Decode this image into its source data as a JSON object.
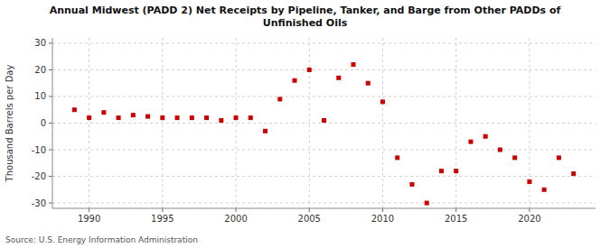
{
  "chart_data": {
    "type": "scatter",
    "title": "Annual Midwest (PADD 2) Net Receipts by Pipeline, Tanker, and Barge from Other PADDs of\nUnfinished Oils",
    "ylabel": "Thousand Barrels per Day",
    "source": "Source: U.S. Energy Information Administration",
    "color": "#cc0000",
    "marker": "square",
    "grid": true,
    "x": [
      1989,
      1990,
      1991,
      1992,
      1993,
      1994,
      1995,
      1996,
      1997,
      1998,
      1999,
      2000,
      2001,
      2002,
      2003,
      2004,
      2005,
      2006,
      2007,
      2008,
      2009,
      2010,
      2011,
      2012,
      2013,
      2014,
      2015,
      2016,
      2017,
      2018,
      2019,
      2020,
      2021,
      2022,
      2023
    ],
    "values": [
      5.0,
      2.0,
      4.0,
      2.0,
      3.0,
      2.5,
      2.0,
      2.0,
      2.0,
      2.0,
      1.0,
      2.0,
      2.0,
      -3.0,
      9.0,
      16.0,
      20.0,
      1.0,
      17.0,
      22.0,
      15.0,
      8.0,
      -13.0,
      -23.0,
      -30.0,
      -18.0,
      -18.0,
      -7.0,
      -5.0,
      -10.0,
      -13.0,
      -22.0,
      -25.0,
      -13.0,
      -19.0
    ],
    "xlim": [
      1987.5,
      2024.5
    ],
    "ylim": [
      -32,
      32
    ],
    "xticks": [
      1990,
      1995,
      2000,
      2005,
      2010,
      2015,
      2020
    ],
    "yticks": [
      -30,
      -20,
      -10,
      0,
      10,
      20,
      30
    ]
  }
}
